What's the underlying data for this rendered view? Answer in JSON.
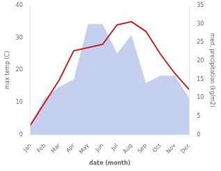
{
  "chart_data": {
    "type": "line",
    "categories": [
      "Jan",
      "Feb",
      "Mar",
      "Apr",
      "May",
      "Jun",
      "Jul",
      "Aug",
      "Sep",
      "Oct",
      "Nov",
      "Dec"
    ],
    "series": [
      {
        "type": "area",
        "color": "#c5d0ef",
        "axis": "y2",
        "values": [
          3,
          10,
          13,
          15,
          30,
          30,
          22,
          27,
          14,
          16,
          16,
          10
        ]
      },
      {
        "type": "line",
        "color": "#cc2222",
        "values": [
          3,
          10,
          17,
          26,
          27,
          28,
          34,
          35,
          32,
          25,
          19,
          14
        ]
      }
    ],
    "xlabel": "date (month)",
    "ylabel": "max temp (C)",
    "y2label": "med. precipitation (kg/m2)",
    "ylim": [
      0,
      40
    ],
    "yticks": [
      0,
      10,
      20,
      30,
      40
    ],
    "y2lim": [
      0,
      35
    ],
    "y2ticks": [
      0,
      5,
      10,
      15,
      20,
      25,
      30,
      35
    ],
    "grid": false
  }
}
